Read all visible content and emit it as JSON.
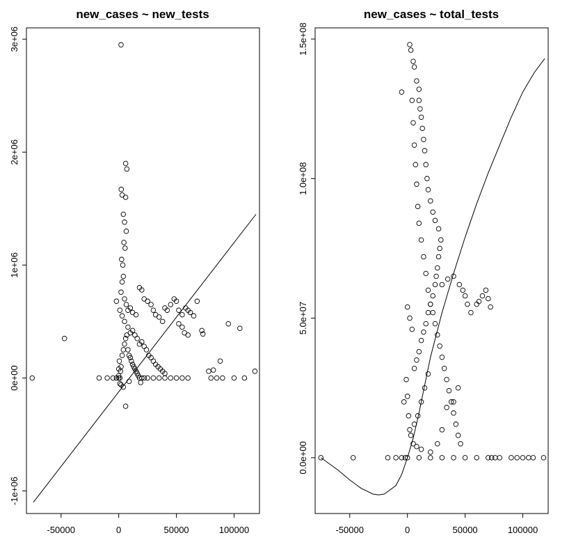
{
  "chart_data": [
    {
      "type": "scatter",
      "title": "new_cases ~ new_tests",
      "xlabel": "",
      "ylabel": "",
      "xlim": [
        -80000,
        122000
      ],
      "ylim": [
        -1200000,
        3100000
      ],
      "xticks": [
        -50000,
        0,
        50000,
        100000
      ],
      "xtick_labels": [
        "-50000",
        "0",
        "50000",
        "100000"
      ],
      "yticks": [
        -1000000,
        0,
        1000000,
        2000000,
        3000000
      ],
      "ytick_labels": [
        "-1e+06",
        "0e+00",
        "1e+06",
        "2e+06",
        "3e+06"
      ],
      "grid": false,
      "marker": "open-circle",
      "points": [
        [
          -75000,
          0
        ],
        [
          -47000,
          350000
        ],
        [
          -17000,
          0
        ],
        [
          -10000,
          0
        ],
        [
          -5000,
          0
        ],
        [
          -2000,
          0
        ],
        [
          0,
          0
        ],
        [
          0,
          20000
        ],
        [
          0,
          80000
        ],
        [
          500,
          150000
        ],
        [
          1000,
          0
        ],
        [
          1500,
          60000
        ],
        [
          2000,
          2950000
        ],
        [
          2200,
          1670000
        ],
        [
          3000,
          1620000
        ],
        [
          4000,
          1450000
        ],
        [
          5000,
          1380000
        ],
        [
          6000,
          1600000
        ],
        [
          6000,
          1900000
        ],
        [
          7000,
          1850000
        ],
        [
          4500,
          1200000
        ],
        [
          3500,
          1000000
        ],
        [
          5500,
          1150000
        ],
        [
          6500,
          1300000
        ],
        [
          2500,
          1050000
        ],
        [
          3000,
          850000
        ],
        [
          4000,
          900000
        ],
        [
          2000,
          760000
        ],
        [
          5000,
          700000
        ],
        [
          6500,
          650000
        ],
        [
          -2000,
          680000
        ],
        [
          1000,
          600000
        ],
        [
          3000,
          550000
        ],
        [
          5000,
          500000
        ],
        [
          8000,
          600000
        ],
        [
          10000,
          620000
        ],
        [
          12000,
          580000
        ],
        [
          15000,
          560000
        ],
        [
          18000,
          800000
        ],
        [
          20000,
          780000
        ],
        [
          22000,
          700000
        ],
        [
          25000,
          680000
        ],
        [
          28000,
          650000
        ],
        [
          30000,
          600000
        ],
        [
          32000,
          560000
        ],
        [
          35000,
          540000
        ],
        [
          38000,
          500000
        ],
        [
          40000,
          620000
        ],
        [
          42000,
          600000
        ],
        [
          45000,
          650000
        ],
        [
          48000,
          700000
        ],
        [
          50000,
          680000
        ],
        [
          52000,
          600000
        ],
        [
          55000,
          560000
        ],
        [
          58000,
          620000
        ],
        [
          60000,
          600000
        ],
        [
          62000,
          580000
        ],
        [
          65000,
          550000
        ],
        [
          52000,
          480000
        ],
        [
          55000,
          450000
        ],
        [
          57000,
          400000
        ],
        [
          60000,
          380000
        ],
        [
          68000,
          680000
        ],
        [
          72000,
          420000
        ],
        [
          73000,
          390000
        ],
        [
          95000,
          480000
        ],
        [
          105000,
          440000
        ],
        [
          118000,
          60000
        ],
        [
          78000,
          60000
        ],
        [
          80000,
          0
        ],
        [
          82000,
          70000
        ],
        [
          85000,
          0
        ],
        [
          88000,
          150000
        ],
        [
          90000,
          0
        ],
        [
          100000,
          0
        ],
        [
          109000,
          0
        ],
        [
          8000,
          450000
        ],
        [
          10000,
          400000
        ],
        [
          12000,
          420000
        ],
        [
          14000,
          380000
        ],
        [
          16000,
          350000
        ],
        [
          18000,
          300000
        ],
        [
          20000,
          320000
        ],
        [
          22000,
          280000
        ],
        [
          24000,
          250000
        ],
        [
          26000,
          200000
        ],
        [
          28000,
          180000
        ],
        [
          30000,
          150000
        ],
        [
          32000,
          120000
        ],
        [
          34000,
          100000
        ],
        [
          36000,
          80000
        ],
        [
          38000,
          60000
        ],
        [
          40000,
          40000
        ],
        [
          2000,
          100000
        ],
        [
          3000,
          200000
        ],
        [
          4000,
          250000
        ],
        [
          5000,
          300000
        ],
        [
          6000,
          350000
        ],
        [
          7000,
          380000
        ],
        [
          8000,
          250000
        ],
        [
          9000,
          200000
        ],
        [
          10000,
          180000
        ],
        [
          11000,
          150000
        ],
        [
          12000,
          120000
        ],
        [
          13000,
          100000
        ],
        [
          14000,
          80000
        ],
        [
          15000,
          60000
        ],
        [
          16000,
          40000
        ],
        [
          17000,
          20000
        ],
        [
          18000,
          0
        ],
        [
          20000,
          0
        ],
        [
          22000,
          0
        ],
        [
          25000,
          0
        ],
        [
          30000,
          0
        ],
        [
          35000,
          0
        ],
        [
          40000,
          0
        ],
        [
          45000,
          0
        ],
        [
          50000,
          0
        ],
        [
          55000,
          0
        ],
        [
          60000,
          0
        ],
        [
          1000,
          -50000
        ],
        [
          2000,
          -60000
        ],
        [
          6000,
          -250000
        ],
        [
          4000,
          -80000
        ],
        [
          9000,
          -30000
        ],
        [
          19000,
          -40000
        ]
      ],
      "fit_line": [
        [
          -74000,
          -1100000
        ],
        [
          119000,
          1450000
        ]
      ]
    },
    {
      "type": "scatter",
      "title": "new_cases ~ total_tests",
      "xlabel": "",
      "ylabel": "",
      "xlim": [
        -80000,
        122000
      ],
      "ylim": [
        -20000000,
        154000000
      ],
      "xticks": [
        -50000,
        0,
        50000,
        100000
      ],
      "xtick_labels": [
        "-50000",
        "0",
        "50000",
        "100000"
      ],
      "yticks": [
        0,
        50000000,
        100000000,
        150000000
      ],
      "ytick_labels": [
        "0.0e+00",
        "5.0e+07",
        "1.0e+08",
        "1.5e+08"
      ],
      "grid": false,
      "marker": "open-circle",
      "points": [
        [
          -75000,
          0
        ],
        [
          -47000,
          0
        ],
        [
          -17000,
          0
        ],
        [
          -10000,
          0
        ],
        [
          -5000,
          0
        ],
        [
          -2000,
          0
        ],
        [
          0,
          0
        ],
        [
          10000,
          0
        ],
        [
          20000,
          0
        ],
        [
          30000,
          0
        ],
        [
          40000,
          0
        ],
        [
          50000,
          0
        ],
        [
          60000,
          0
        ],
        [
          70000,
          0
        ],
        [
          73000,
          0
        ],
        [
          76000,
          0
        ],
        [
          80000,
          0
        ],
        [
          90000,
          0
        ],
        [
          95000,
          0
        ],
        [
          100000,
          0
        ],
        [
          105000,
          0
        ],
        [
          109000,
          0
        ],
        [
          118000,
          0
        ],
        [
          -5000,
          131000000
        ],
        [
          2000,
          148000000
        ],
        [
          3000,
          146000000
        ],
        [
          5000,
          142000000
        ],
        [
          6000,
          140000000
        ],
        [
          8000,
          135000000
        ],
        [
          10000,
          132000000
        ],
        [
          10000,
          128000000
        ],
        [
          11000,
          125000000
        ],
        [
          12000,
          122000000
        ],
        [
          13000,
          118000000
        ],
        [
          14000,
          114000000
        ],
        [
          15000,
          110000000
        ],
        [
          16000,
          105000000
        ],
        [
          17000,
          100000000
        ],
        [
          18000,
          96000000
        ],
        [
          20000,
          92000000
        ],
        [
          22000,
          88000000
        ],
        [
          24000,
          85000000
        ],
        [
          27000,
          82000000
        ],
        [
          29000,
          78000000
        ],
        [
          28000,
          75000000
        ],
        [
          27000,
          72000000
        ],
        [
          26000,
          68000000
        ],
        [
          25000,
          65000000
        ],
        [
          24000,
          62000000
        ],
        [
          22000,
          58000000
        ],
        [
          20000,
          55000000
        ],
        [
          18000,
          52000000
        ],
        [
          16000,
          48000000
        ],
        [
          14000,
          45000000
        ],
        [
          12000,
          42000000
        ],
        [
          10000,
          38000000
        ],
        [
          8000,
          35000000
        ],
        [
          6000,
          32000000
        ],
        [
          4000,
          128000000
        ],
        [
          5000,
          120000000
        ],
        [
          6000,
          112000000
        ],
        [
          7000,
          105000000
        ],
        [
          8000,
          98000000
        ],
        [
          9000,
          90000000
        ],
        [
          10000,
          84000000
        ],
        [
          12000,
          78000000
        ],
        [
          14000,
          72000000
        ],
        [
          16000,
          66000000
        ],
        [
          18000,
          60000000
        ],
        [
          20000,
          55000000
        ],
        [
          22000,
          52000000
        ],
        [
          24000,
          48000000
        ],
        [
          26000,
          44000000
        ],
        [
          28000,
          40000000
        ],
        [
          30000,
          36000000
        ],
        [
          32000,
          32000000
        ],
        [
          34000,
          28000000
        ],
        [
          36000,
          24000000
        ],
        [
          38000,
          20000000
        ],
        [
          40000,
          16000000
        ],
        [
          42000,
          12000000
        ],
        [
          44000,
          8000000
        ],
        [
          46000,
          5000000
        ],
        [
          30000,
          62000000
        ],
        [
          35000,
          64000000
        ],
        [
          40000,
          65000000
        ],
        [
          45000,
          62000000
        ],
        [
          48000,
          60000000
        ],
        [
          50000,
          58000000
        ],
        [
          52000,
          55000000
        ],
        [
          55000,
          52000000
        ],
        [
          60000,
          55000000
        ],
        [
          62000,
          56000000
        ],
        [
          65000,
          58000000
        ],
        [
          68000,
          60000000
        ],
        [
          70000,
          57000000
        ],
        [
          72000,
          54000000
        ],
        [
          0,
          54000000
        ],
        [
          2000,
          50000000
        ],
        [
          4000,
          46000000
        ],
        [
          -1000,
          28000000
        ],
        [
          0,
          22000000
        ],
        [
          -3000,
          20000000
        ],
        [
          1000,
          15000000
        ],
        [
          2000,
          10000000
        ],
        [
          3000,
          8000000
        ],
        [
          5000,
          5000000
        ],
        [
          8000,
          4000000
        ],
        [
          12000,
          3000000
        ],
        [
          20000,
          2000000
        ],
        [
          26000,
          5000000
        ],
        [
          30000,
          10000000
        ],
        [
          34000,
          18000000
        ],
        [
          40000,
          20000000
        ],
        [
          44000,
          25000000
        ],
        [
          18000,
          30000000
        ],
        [
          15000,
          25000000
        ],
        [
          12000,
          20000000
        ],
        [
          9000,
          15000000
        ],
        [
          6000,
          12000000
        ]
      ],
      "fit_curve": [
        [
          -75000,
          0
        ],
        [
          -70000,
          -1500000
        ],
        [
          -60000,
          -4500000
        ],
        [
          -50000,
          -8000000
        ],
        [
          -40000,
          -11000000
        ],
        [
          -30000,
          -13000000
        ],
        [
          -25000,
          -13300000
        ],
        [
          -20000,
          -13000000
        ],
        [
          -10000,
          -10000000
        ],
        [
          -5000,
          -6000000
        ],
        [
          0,
          0
        ],
        [
          5000,
          7000000
        ],
        [
          10000,
          16000000
        ],
        [
          15000,
          26000000
        ],
        [
          20000,
          36000000
        ],
        [
          30000,
          52000000
        ],
        [
          40000,
          66000000
        ],
        [
          50000,
          79000000
        ],
        [
          60000,
          91000000
        ],
        [
          70000,
          102000000
        ],
        [
          80000,
          112000000
        ],
        [
          90000,
          122000000
        ],
        [
          100000,
          131000000
        ],
        [
          110000,
          138000000
        ],
        [
          119000,
          143000000
        ]
      ]
    }
  ]
}
